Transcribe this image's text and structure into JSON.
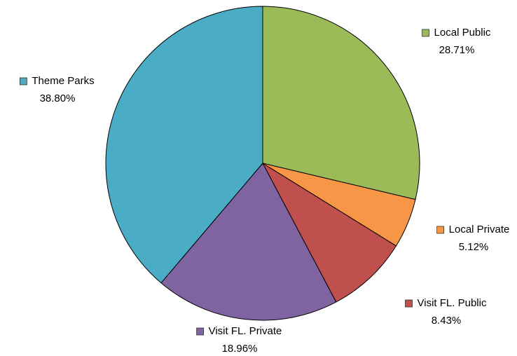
{
  "chart_data": {
    "type": "pie",
    "categories": [
      "Local Public",
      "Local Private",
      "Visit FL. Public",
      "Visit FL. Private",
      "Theme Parks"
    ],
    "values": [
      28.71,
      5.12,
      8.43,
      18.96,
      38.8
    ],
    "value_labels": [
      "28.71%",
      "5.12%",
      "8.43%",
      "18.96%",
      "38.80%"
    ],
    "colors": [
      "#9bbb59",
      "#f79646",
      "#c0504d",
      "#8064a2",
      "#4bacc6"
    ]
  }
}
